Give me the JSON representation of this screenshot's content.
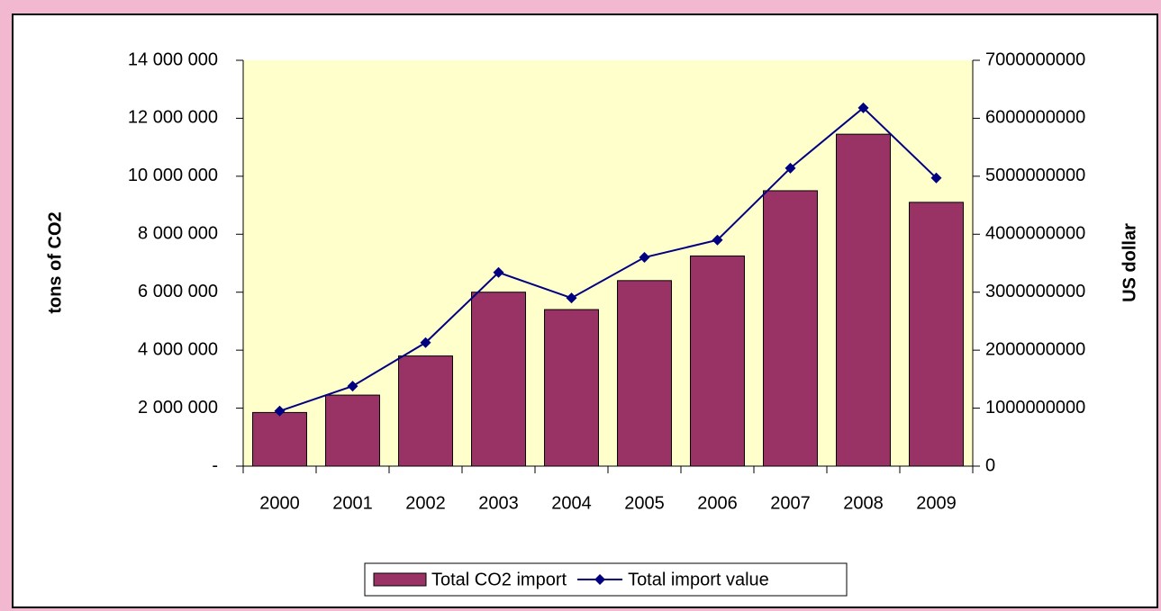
{
  "chart_data": {
    "type": "bar",
    "categories": [
      "2000",
      "2001",
      "2002",
      "2003",
      "2004",
      "2005",
      "2006",
      "2007",
      "2008",
      "2009"
    ],
    "series": [
      {
        "name": "Total CO2 import",
        "type": "bar",
        "color": "#993366",
        "values": [
          1850000,
          2450000,
          3800000,
          6000000,
          5400000,
          6400000,
          7250000,
          9500000,
          11450000,
          9100000
        ]
      },
      {
        "name": "Total import value",
        "type": "line",
        "axis": "y2",
        "color": "#000080",
        "values": [
          950000000,
          1380000000,
          2130000000,
          3340000000,
          2900000000,
          3600000000,
          3900000000,
          5140000000,
          6180000000,
          4970000000
        ]
      }
    ],
    "y_label": "tons of CO2",
    "y2_label": "US dollar",
    "ylim": [
      0,
      14000000
    ],
    "yticks": [
      {
        "value": 0,
        "label": "-"
      },
      {
        "value": 2000000,
        "label": "2 000 000"
      },
      {
        "value": 4000000,
        "label": "4 000 000"
      },
      {
        "value": 6000000,
        "label": "6 000 000"
      },
      {
        "value": 8000000,
        "label": "8 000 000"
      },
      {
        "value": 10000000,
        "label": "10 000 000"
      },
      {
        "value": 12000000,
        "label": "12 000 000"
      },
      {
        "value": 14000000,
        "label": "14 000 000"
      }
    ],
    "y2lim": [
      0,
      7000000000
    ],
    "y2ticks": [
      0,
      1000000000,
      2000000000,
      3000000000,
      4000000000,
      5000000000,
      6000000000,
      7000000000
    ],
    "legend": "bottom"
  }
}
